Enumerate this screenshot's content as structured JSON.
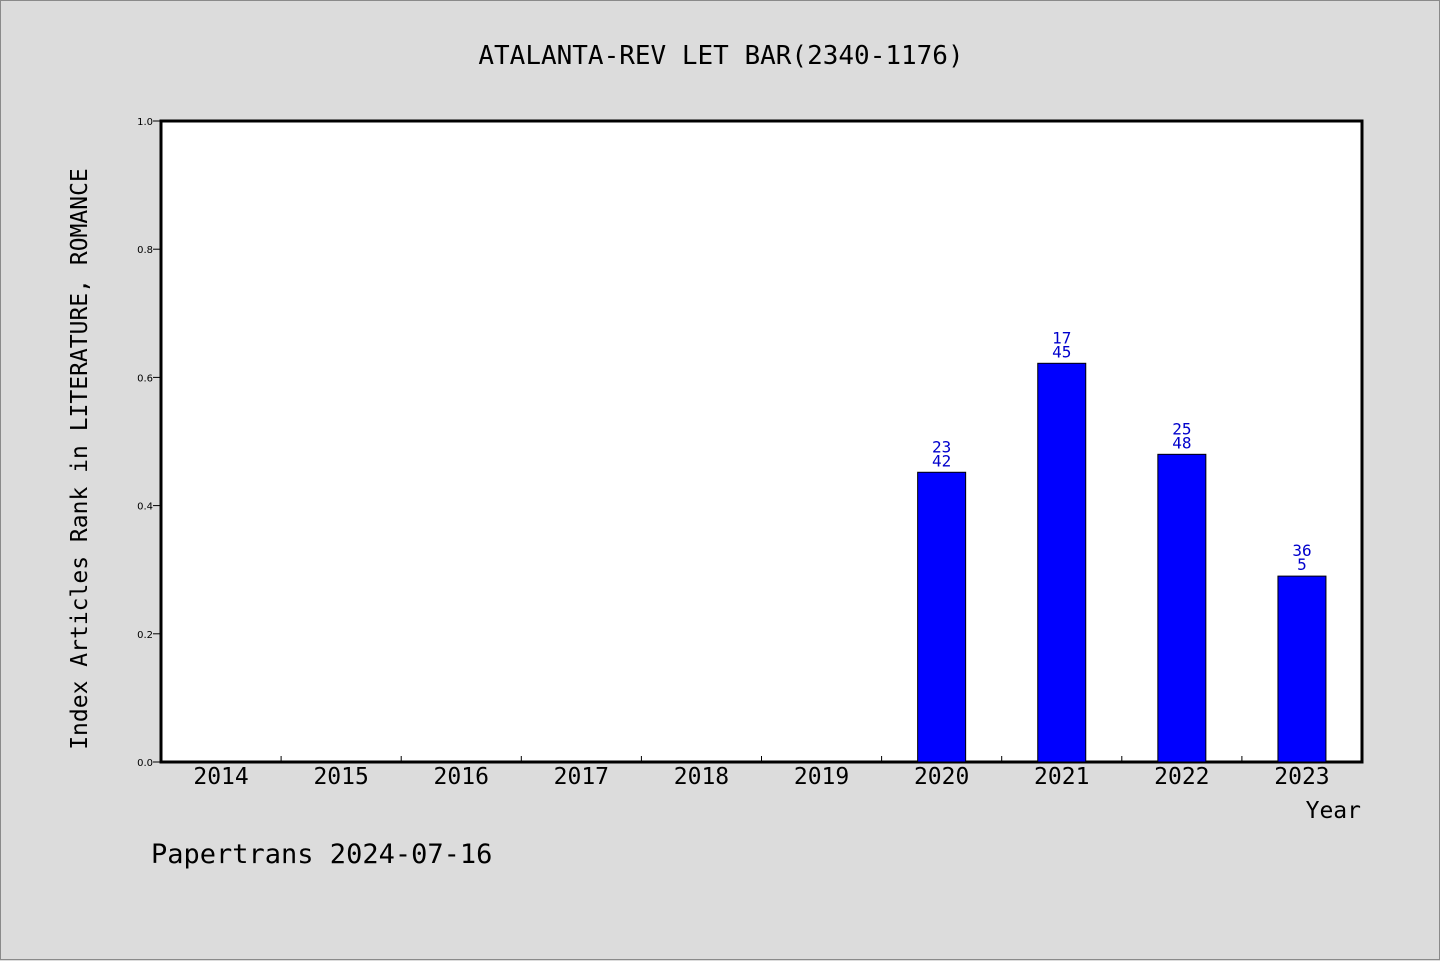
{
  "chart_data": {
    "type": "bar",
    "title": "ATALANTA-REV LET BAR(2340-1176)",
    "xlabel": "Year",
    "ylabel": "Index Articles Rank in LITERATURE, ROMANCE",
    "ylim": [
      0,
      1.0
    ],
    "yticks": [
      "0.0",
      "0.2",
      "0.4",
      "0.6",
      "0.8",
      "1.0"
    ],
    "categories": [
      "2014",
      "2015",
      "2016",
      "2017",
      "2018",
      "2019",
      "2020",
      "2021",
      "2022",
      "2023"
    ],
    "values": [
      null,
      null,
      null,
      null,
      null,
      null,
      0.452,
      0.622,
      0.48,
      0.29
    ],
    "bar_labels": [
      null,
      null,
      null,
      null,
      null,
      null,
      [
        "23",
        "42"
      ],
      [
        "17",
        "45"
      ],
      [
        "25",
        "48"
      ],
      [
        "36",
        "5"
      ]
    ],
    "bar_color": "#0000ff",
    "label_color": "#0000cc",
    "grid": false,
    "legend": "none"
  },
  "footer": "Papertrans 2024-07-16"
}
